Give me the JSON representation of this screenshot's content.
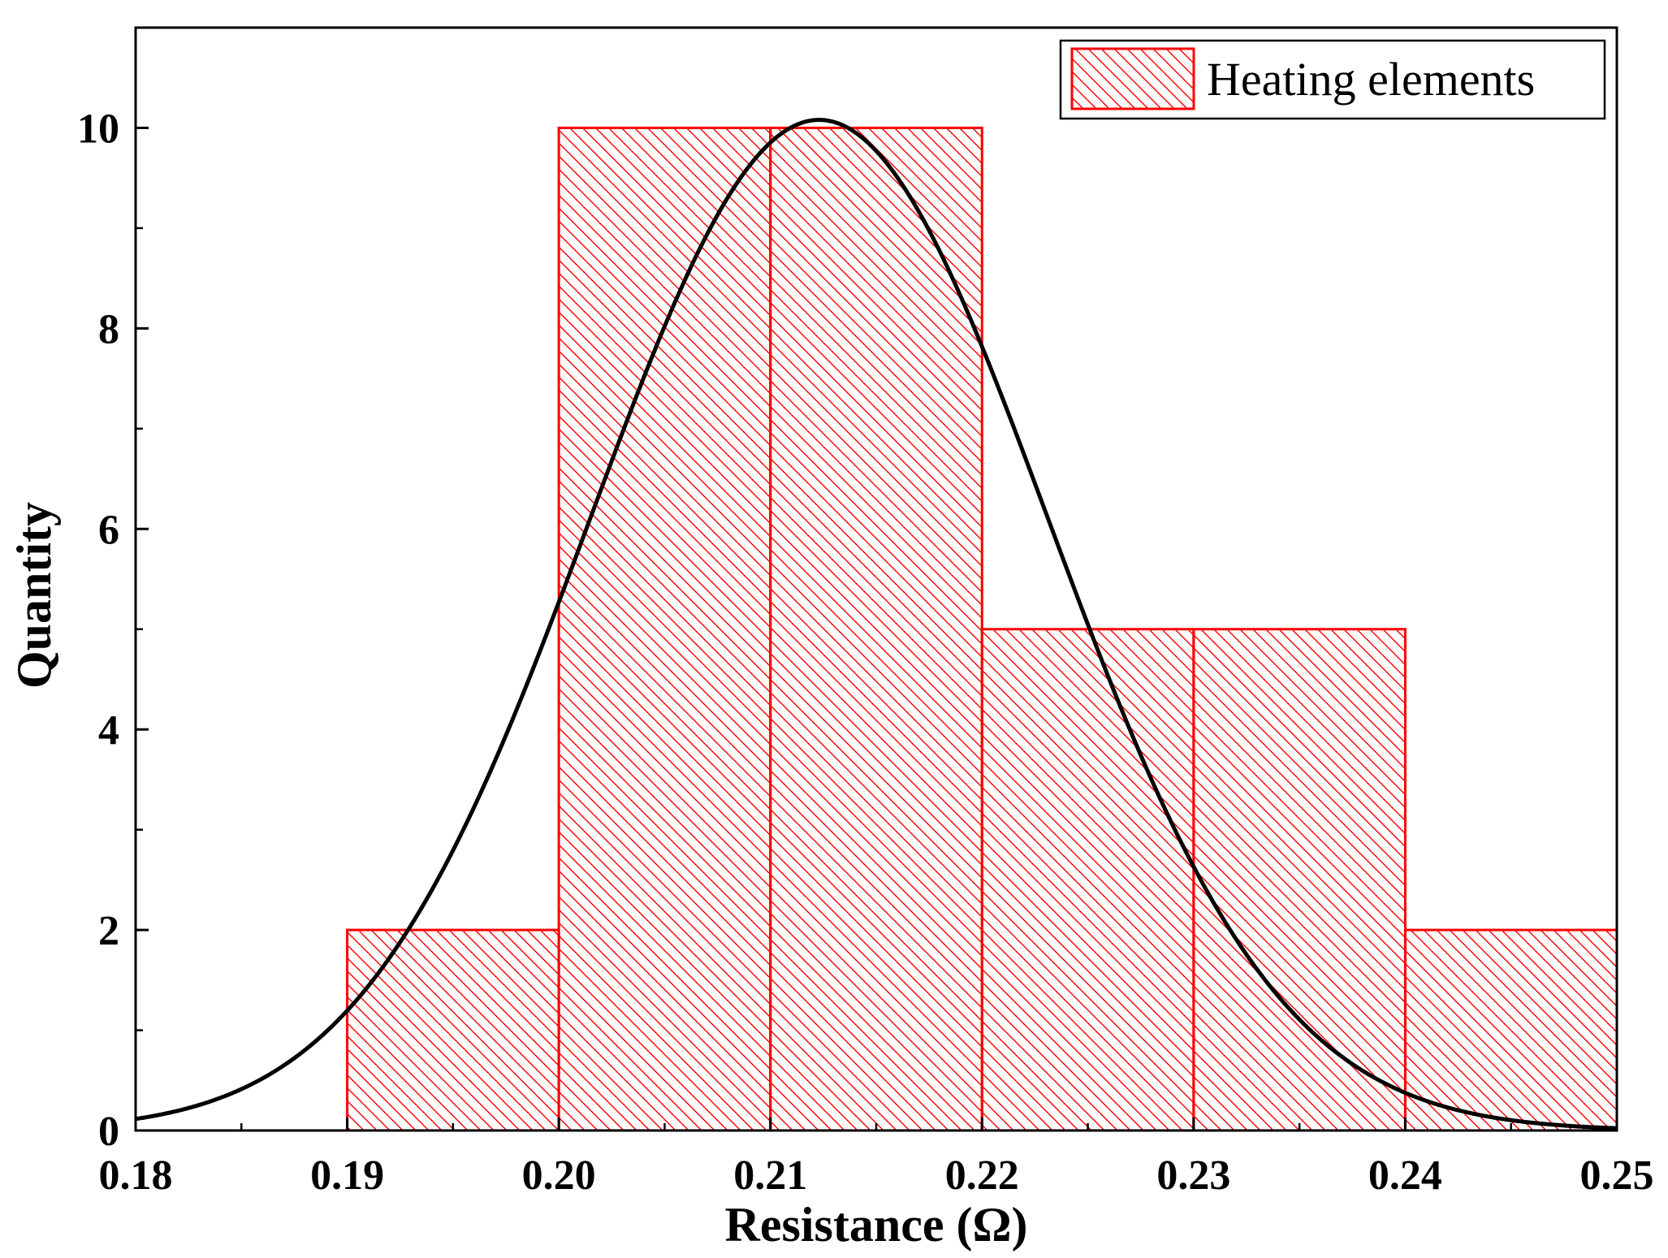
{
  "chart_data": {
    "type": "bar",
    "subtype": "histogram",
    "xlabel": "Resistance (Ω)",
    "ylabel": "Quantity",
    "xlim": [
      0.18,
      0.25
    ],
    "ylim": [
      0,
      11
    ],
    "x_ticks": [
      0.18,
      0.19,
      0.2,
      0.21,
      0.22,
      0.23,
      0.24,
      0.25
    ],
    "x_tick_labels": [
      "0.18",
      "0.19",
      "0.20",
      "0.21",
      "0.22",
      "0.23",
      "0.24",
      "0.25"
    ],
    "y_ticks": [
      0,
      2,
      4,
      6,
      8,
      10
    ],
    "y_tick_labels": [
      "0",
      "2",
      "4",
      "6",
      "8",
      "10"
    ],
    "bins": [
      {
        "start": 0.19,
        "end": 0.2,
        "count": 2
      },
      {
        "start": 0.2,
        "end": 0.21,
        "count": 10
      },
      {
        "start": 0.21,
        "end": 0.22,
        "count": 10
      },
      {
        "start": 0.22,
        "end": 0.23,
        "count": 5
      },
      {
        "start": 0.23,
        "end": 0.24,
        "count": 5
      },
      {
        "start": 0.24,
        "end": 0.25,
        "count": 2
      }
    ],
    "fit_curve": {
      "type": "normal",
      "mean": 0.2123,
      "sd": 0.0108,
      "peak": 10.08
    },
    "legend": {
      "label": "Heating elements",
      "position": "top-right"
    },
    "colors": {
      "bars": "#ff0000",
      "curve": "#000000",
      "axis": "#000000"
    }
  }
}
